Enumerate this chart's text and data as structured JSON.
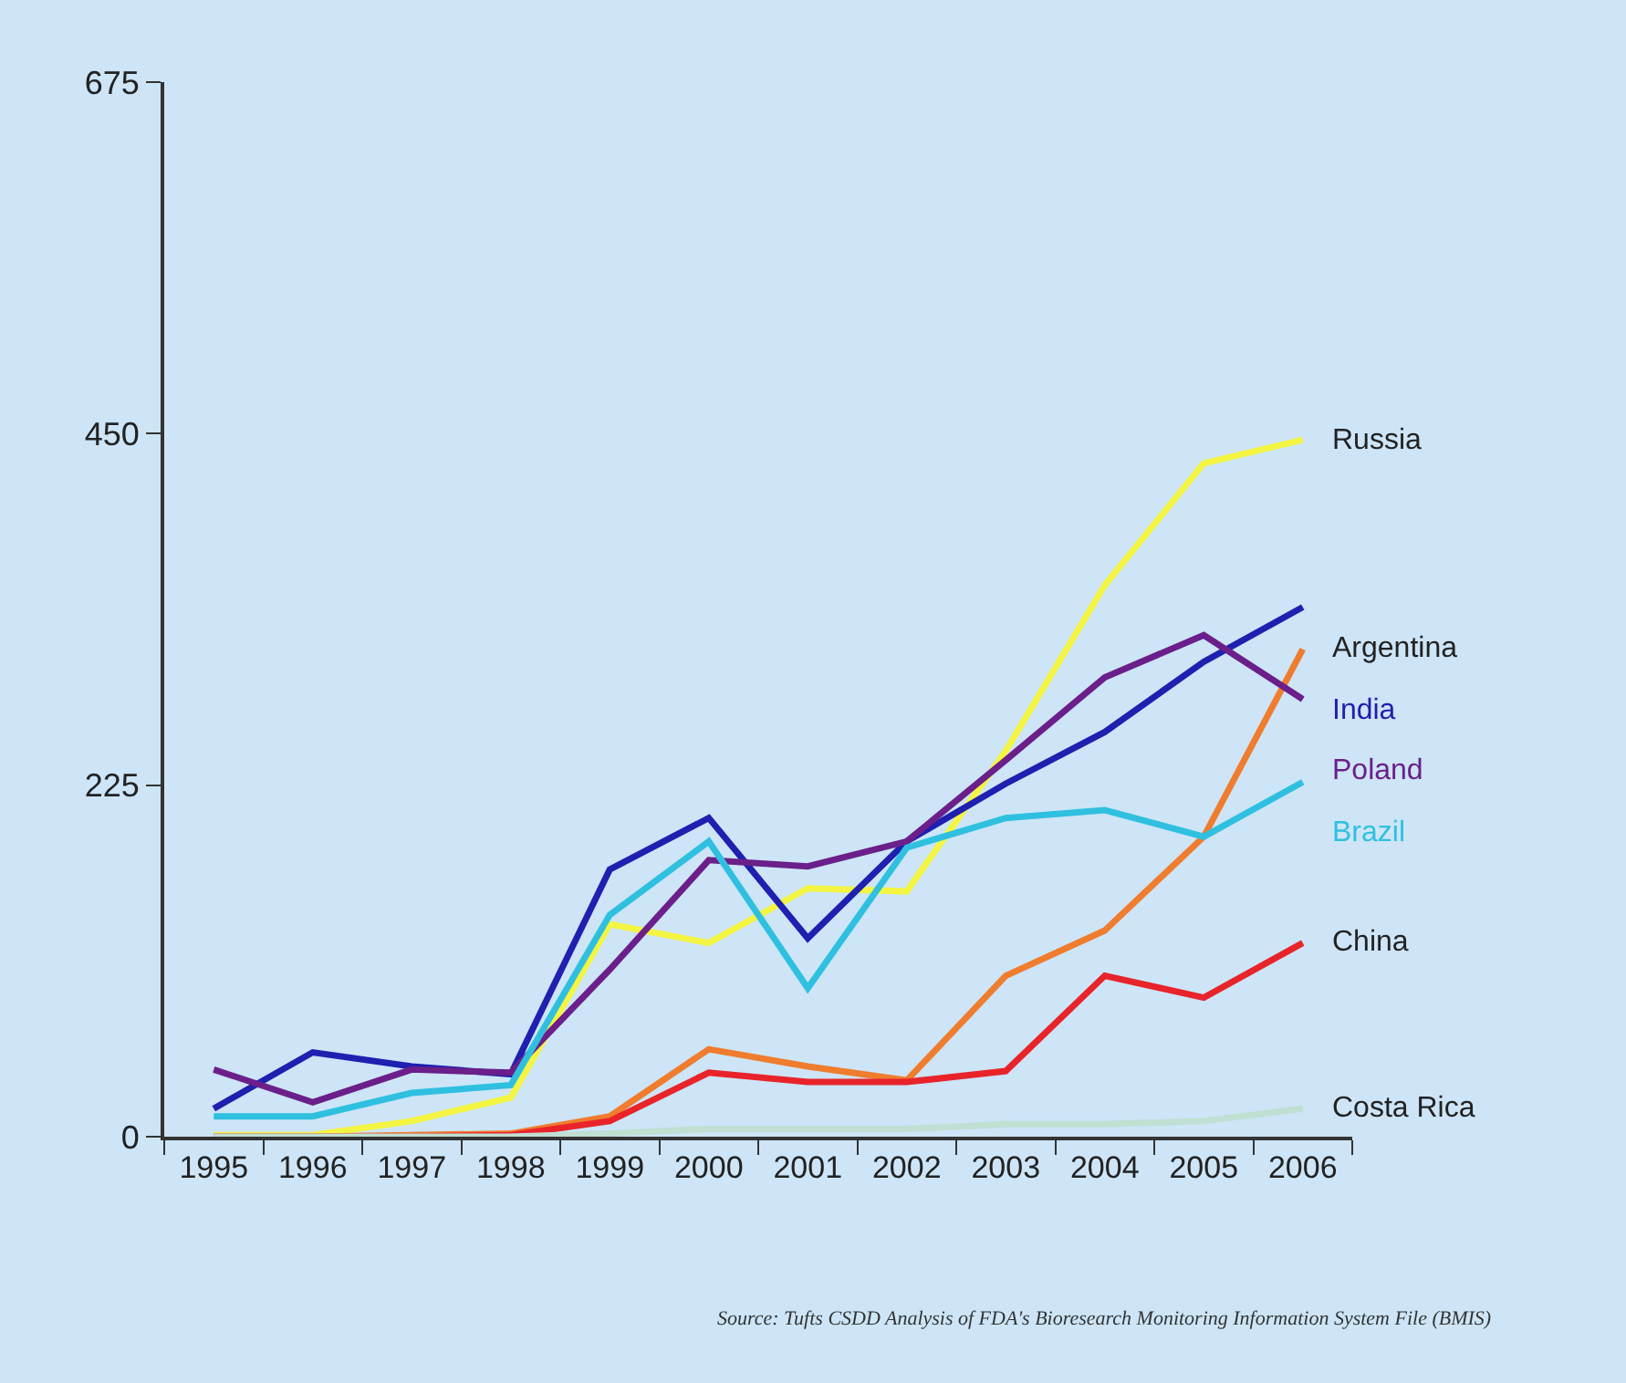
{
  "chart_data": {
    "type": "line",
    "categories": [
      "1995",
      "1996",
      "1997",
      "1998",
      "1999",
      "2000",
      "2001",
      "2002",
      "2003",
      "2004",
      "2005",
      "2006"
    ],
    "series": [
      {
        "name": "Russia",
        "color": "#f4f542",
        "values": [
          1,
          1,
          10,
          25,
          136,
          124,
          159,
          157,
          247,
          353,
          431,
          446
        ]
      },
      {
        "name": "Argentina",
        "color": "#f07c2e",
        "values": [
          0,
          0,
          1,
          2,
          13,
          56,
          45,
          36,
          103,
          132,
          192,
          312
        ]
      },
      {
        "name": "India",
        "color": "#1f1fb0",
        "values": [
          18,
          54,
          45,
          40,
          171,
          204,
          127,
          189,
          226,
          259,
          304,
          339
        ]
      },
      {
        "name": "Poland",
        "color": "#6b1f8a",
        "values": [
          43,
          22,
          43,
          41,
          107,
          177,
          173,
          189,
          241,
          294,
          321,
          280
        ]
      },
      {
        "name": "Brazil",
        "color": "#2fc0e0",
        "values": [
          13,
          13,
          28,
          33,
          142,
          189,
          95,
          185,
          204,
          209,
          192,
          227
        ]
      },
      {
        "name": "China",
        "color": "#e8242a",
        "values": [
          0,
          0,
          0,
          1,
          10,
          41,
          35,
          35,
          42,
          103,
          89,
          124
        ]
      },
      {
        "name": "Costa Rica",
        "color": "#bfe0d2",
        "values": [
          0,
          0,
          0,
          0,
          2,
          5,
          5,
          5,
          8,
          8,
          10,
          18
        ]
      }
    ],
    "ylim": [
      0,
      675
    ],
    "yticks": [
      0,
      225,
      450,
      675
    ],
    "grid": false,
    "legend": false,
    "marker": "none",
    "line_style": "solid",
    "annotations": [
      "Source: Tufts CSDD Analysis of FDA's Bioresearch Monitoring Information System File (BMIS)"
    ]
  }
}
